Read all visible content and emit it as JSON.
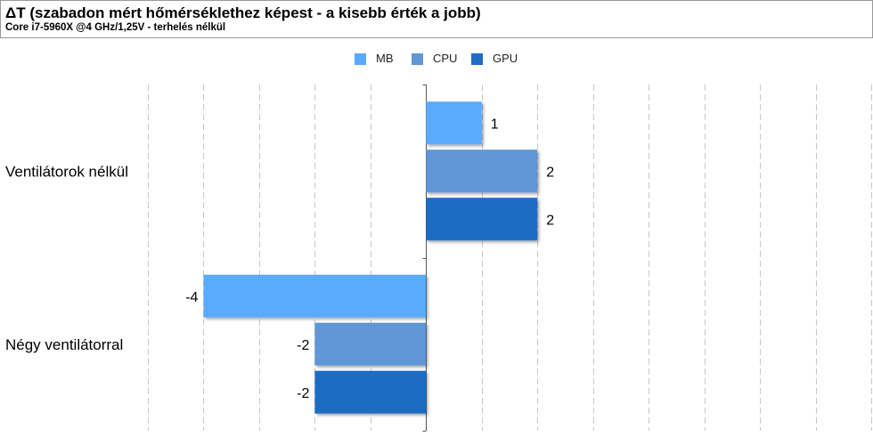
{
  "header": {
    "title": "ΔT (szabadon mért hőmérséklethez képest - a kisebb érték a jobb)",
    "subtitle": "Core i7-5960X @4 GHz/1,25V - terhelés nélkül"
  },
  "legend": {
    "placement": "top-center",
    "items": [
      {
        "label": "MB",
        "color": "#5aabff"
      },
      {
        "label": "CPU",
        "color": "#5f96d6"
      },
      {
        "label": "GPU",
        "color": "#1e6cc4"
      }
    ]
  },
  "chart_data": {
    "type": "bar",
    "orientation": "horizontal",
    "categories": [
      "Ventilátorok nélkül",
      "Négy ventilátorral"
    ],
    "series": [
      {
        "name": "MB",
        "color": "#5aabff",
        "values": [
          1,
          -4
        ]
      },
      {
        "name": "CPU",
        "color": "#5f96d6",
        "values": [
          2,
          -2
        ]
      },
      {
        "name": "GPU",
        "color": "#1e6cc4",
        "values": [
          2,
          -2
        ]
      }
    ],
    "xlim": [
      -5,
      8
    ],
    "grid": true,
    "grid_style": "dashed-vertical"
  }
}
